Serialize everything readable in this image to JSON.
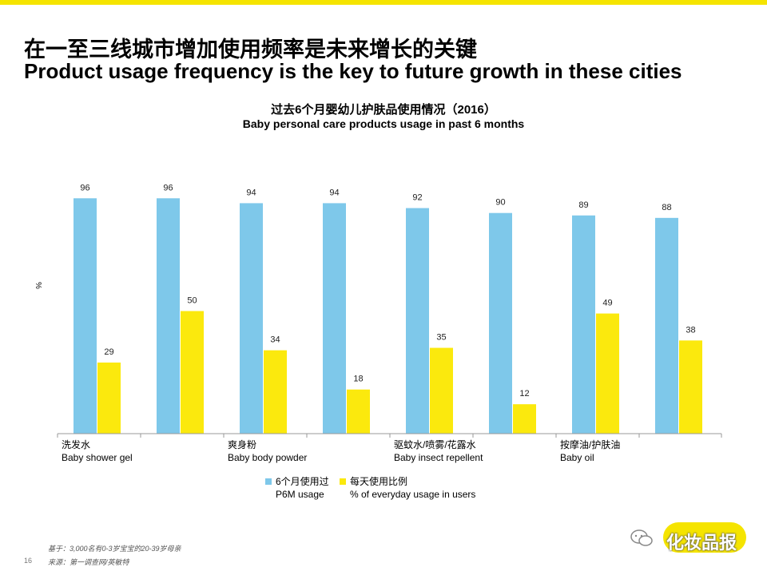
{
  "header": {
    "title_cn": "在一至三线城市增加使用频率是未来增长的关键",
    "title_en": "Product usage frequency is the key to future growth in these cities"
  },
  "chart_data": {
    "type": "bar",
    "title_cn": "过去6个月婴幼儿护肤品使用情况（2016）",
    "title_en": "Baby personal care products usage in past 6 months",
    "ylabel": "%",
    "ylim": [
      0,
      100
    ],
    "categories": [
      {
        "cn": "洗发水",
        "en": "Baby shower gel"
      },
      {
        "cn": "",
        "en": ""
      },
      {
        "cn": "爽身粉",
        "en": "Baby body powder"
      },
      {
        "cn": "",
        "en": ""
      },
      {
        "cn": "驱蚊水/喷雾/花露水",
        "en": "Baby insect repellent"
      },
      {
        "cn": "",
        "en": ""
      },
      {
        "cn": "按摩油/护肤油",
        "en": "Baby oil"
      },
      {
        "cn": "",
        "en": ""
      }
    ],
    "series": [
      {
        "name_cn": "6个月使用过",
        "name_en": "P6M usage",
        "color": "#7ec8ea",
        "values": [
          96,
          96,
          94,
          94,
          92,
          90,
          89,
          88
        ]
      },
      {
        "name_cn": "每天使用比例",
        "name_en": "% of everyday usage in users",
        "color": "#fbe90d",
        "values": [
          29,
          50,
          34,
          18,
          35,
          12,
          49,
          38
        ]
      }
    ]
  },
  "footer": {
    "base": "基于：3,000名有0-3岁宝宝的20-39岁母亲",
    "source": "来源：第一调查网/英敏特",
    "page_number": "16",
    "brand": "化妆品报"
  }
}
